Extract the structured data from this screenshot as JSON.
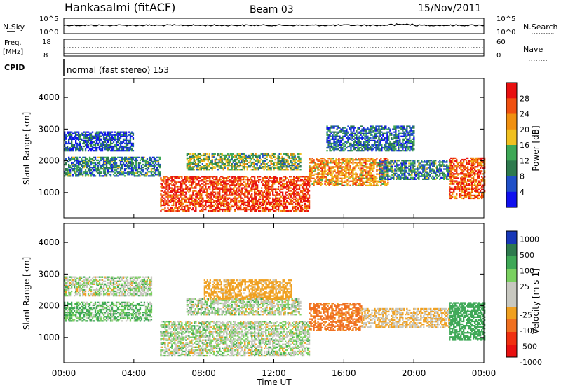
{
  "header": {
    "station": "Hankasalmi (fitACF)",
    "beam": "Beam 03",
    "date": "15/Nov/2011"
  },
  "top_panels": {
    "nsky_label": "N.Sky",
    "nsky_ticks": [
      "10^5",
      "10^0"
    ],
    "nsearch_label": "N.Search",
    "nsearch_ticks": [
      "10^5",
      "10^0"
    ],
    "freq_label": "Freq.",
    "freq_unit": "[MHz]",
    "freq_ticks": [
      "18",
      "8"
    ],
    "nave_label": "Nave",
    "nave_ticks": [
      "60",
      "0"
    ],
    "cpid_label": "CPID",
    "cpid_value": "normal (fast stereo) 153"
  },
  "x_axis": {
    "label": "Time UT",
    "ticks": [
      "00:00",
      "04:00",
      "08:00",
      "12:00",
      "16:00",
      "20:00",
      "00:00"
    ]
  },
  "colors": {
    "power_scale": [
      "#1010ee",
      "#2050c8",
      "#2e7a4e",
      "#3ea856",
      "#f0c020",
      "#f09010",
      "#f05010",
      "#e81010"
    ],
    "velocity_scale": [
      "#1838b8",
      "#2e7a4e",
      "#3ea856",
      "#7ad060",
      "#c8c8c0",
      "#c8c8c0",
      "#f0a020",
      "#f07020",
      "#f03010",
      "#e81010"
    ]
  },
  "chart_data": [
    {
      "type": "heatmap",
      "panel": "power",
      "ylabel": "Slant Range [km]",
      "yticks": [
        "1000",
        "2000",
        "3000",
        "4000"
      ],
      "ylim": [
        200,
        4600
      ],
      "xlim": [
        0,
        24
      ],
      "colorbar_label": "Power [dB]",
      "colorbar_ticks": [
        "4",
        "8",
        "12",
        "16",
        "20",
        "24",
        "28"
      ],
      "colorbar_range": [
        0,
        32
      ],
      "echo_regions": [
        {
          "t0": 0,
          "t1": 5.5,
          "r0": 1500,
          "r1": 2100,
          "value": 10
        },
        {
          "t0": 0,
          "t1": 4,
          "r0": 2300,
          "r1": 2900,
          "value": 6
        },
        {
          "t0": 5.5,
          "t1": 14,
          "r0": 400,
          "r1": 1500,
          "value": 28
        },
        {
          "t0": 7,
          "t1": 13.5,
          "r0": 1700,
          "r1": 2200,
          "value": 14
        },
        {
          "t0": 14,
          "t1": 18.5,
          "r0": 1200,
          "r1": 2100,
          "value": 22
        },
        {
          "t0": 15,
          "t1": 20,
          "r0": 2300,
          "r1": 3100,
          "value": 8
        },
        {
          "t0": 18,
          "t1": 22,
          "r0": 1400,
          "r1": 2000,
          "value": 10
        },
        {
          "t0": 22,
          "t1": 24,
          "r0": 800,
          "r1": 2100,
          "value": 26
        }
      ]
    },
    {
      "type": "heatmap",
      "panel": "velocity",
      "ylabel": "Slant Range [km]",
      "yticks": [
        "1000",
        "2000",
        "3000",
        "4000"
      ],
      "ylim": [
        200,
        4600
      ],
      "xlim": [
        0,
        24
      ],
      "colorbar_label": "Velocity [m s-1]",
      "colorbar_ticks": [
        "1000",
        "500",
        "100",
        "25",
        "-25",
        "-100",
        "-500",
        "-1000"
      ],
      "echo_regions": [
        {
          "t0": 0,
          "t1": 5,
          "r0": 1500,
          "r1": 2100,
          "value": 100
        },
        {
          "t0": 0,
          "t1": 5,
          "r0": 2300,
          "r1": 2900,
          "value": 0
        },
        {
          "t0": 5.5,
          "t1": 14,
          "r0": 400,
          "r1": 1500,
          "value": 0
        },
        {
          "t0": 7,
          "t1": 13.5,
          "r0": 1700,
          "r1": 2200,
          "value": 0
        },
        {
          "t0": 8,
          "t1": 13,
          "r0": 2200,
          "r1": 2800,
          "value": -200
        },
        {
          "t0": 14,
          "t1": 17,
          "r0": 1200,
          "r1": 2100,
          "value": -600
        },
        {
          "t0": 17,
          "t1": 22,
          "r0": 1300,
          "r1": 1900,
          "value": -100
        },
        {
          "t0": 22,
          "t1": 24,
          "r0": 900,
          "r1": 2100,
          "value": 300
        }
      ]
    }
  ]
}
